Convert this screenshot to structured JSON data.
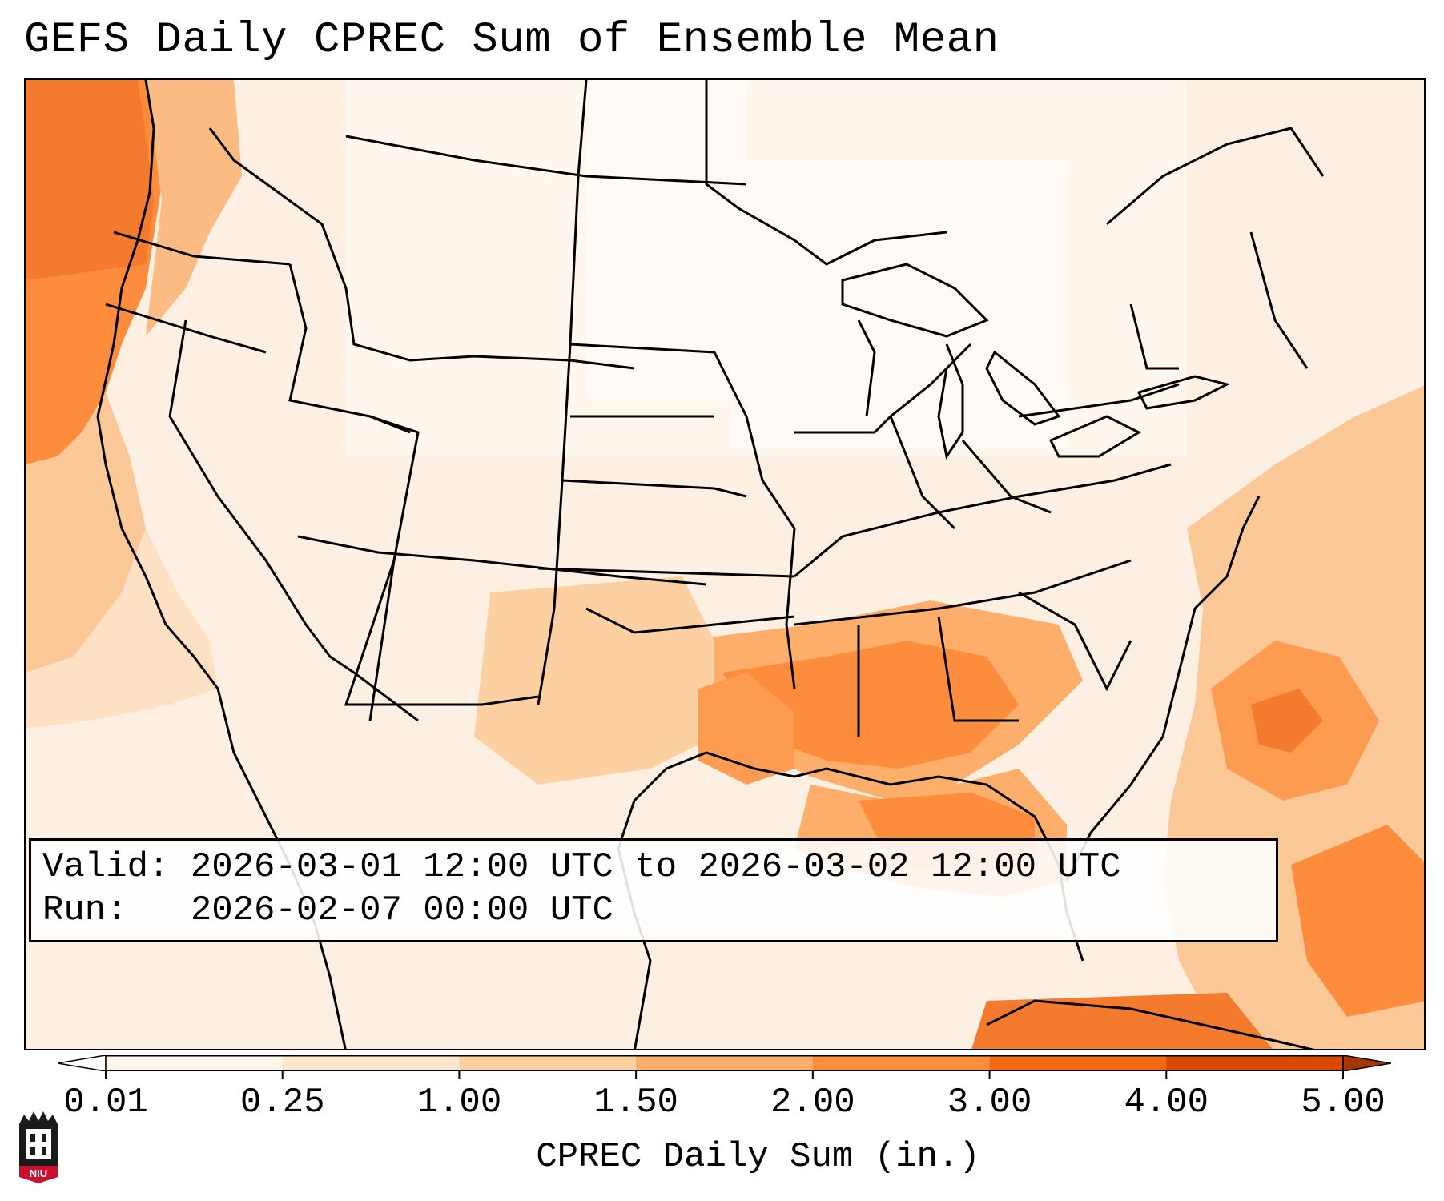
{
  "title": "GEFS Daily CPREC Sum of Ensemble Mean",
  "info": {
    "valid_line": "Valid: 2026-03-01 12:00 UTC to 2026-03-02 12:00 UTC",
    "run_line": "Run:   2026-02-07 00:00 UTC"
  },
  "colorbar": {
    "label": "CPREC Daily Sum (in.)",
    "ticks": [
      "0.01",
      "0.25",
      "1.00",
      "1.50",
      "2.00",
      "3.00",
      "4.00",
      "5.00"
    ],
    "colors": [
      "#fff5eb",
      "#fee6ce",
      "#fdd0a2",
      "#fdae6b",
      "#fd8d3c",
      "#f16913",
      "#d94801"
    ],
    "under_color": "#ffffff",
    "over_color": "#a63603"
  },
  "logo": {
    "text": "NIU",
    "name": "niu-logo"
  }
}
